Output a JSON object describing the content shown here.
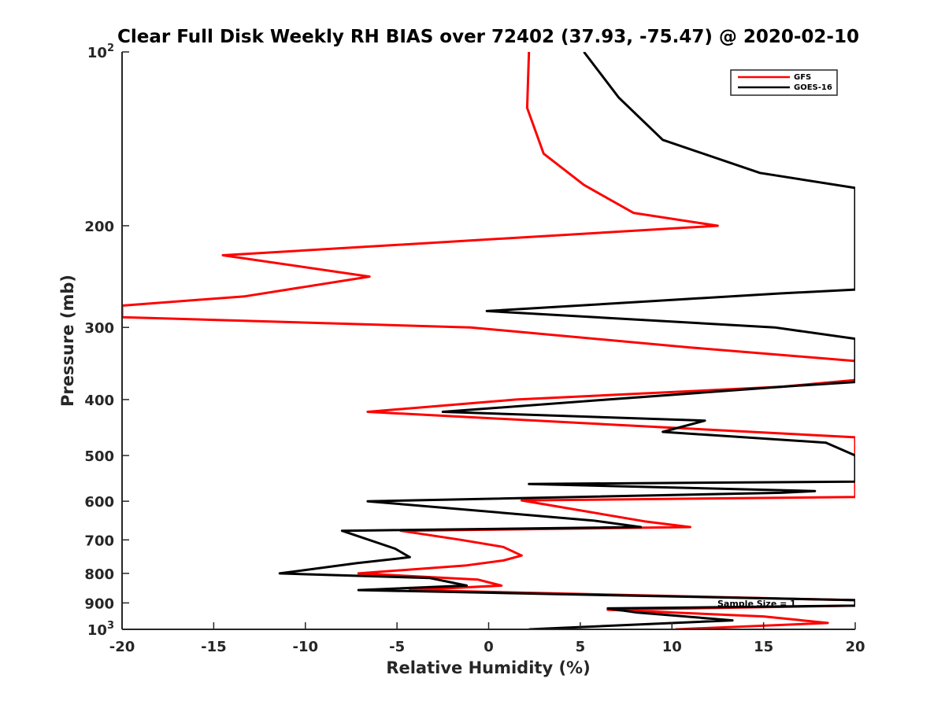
{
  "chart_data": {
    "type": "line",
    "title": "Clear Full Disk Weekly RH BIAS over 72402 (37.93, -75.47) @ 2020-02-10",
    "xlabel": "Relative Humidity (%)",
    "ylabel": "Pressure (mb)",
    "xlim": [
      -20,
      20
    ],
    "ylim": [
      100,
      1000
    ],
    "yscale": "log",
    "y_reversed": true,
    "grid": false,
    "legend_position": "top-right",
    "x_ticks": [
      -20,
      -15,
      -10,
      -5,
      0,
      5,
      10,
      15,
      20
    ],
    "x_tick_labels": [
      "-20",
      "-15",
      "-10",
      "-5",
      "0",
      "5",
      "10",
      "15",
      "20"
    ],
    "y_ticks": [
      100,
      200,
      300,
      400,
      500,
      600,
      700,
      800,
      900,
      1000
    ],
    "y_tick_labels": [
      {
        "base": "10",
        "exp": "2"
      },
      {
        "base": "200",
        "exp": ""
      },
      {
        "base": "300",
        "exp": ""
      },
      {
        "base": "400",
        "exp": ""
      },
      {
        "base": "500",
        "exp": ""
      },
      {
        "base": "600",
        "exp": ""
      },
      {
        "base": "700",
        "exp": ""
      },
      {
        "base": "800",
        "exp": ""
      },
      {
        "base": "900",
        "exp": ""
      },
      {
        "base": "10",
        "exp": "3"
      }
    ],
    "annotation": "Sample Size = 1",
    "series": [
      {
        "name": "GFS",
        "color": "#ff0000",
        "points": [
          [
            2.2,
            100
          ],
          [
            2.1,
            125
          ],
          [
            3.0,
            150
          ],
          [
            5.2,
            170
          ],
          [
            7.9,
            190
          ],
          [
            12.5,
            200
          ],
          [
            -14.5,
            225
          ],
          [
            -6.5,
            245
          ],
          [
            -13.3,
            265
          ],
          [
            -20,
            275
          ],
          [
            -20,
            288
          ],
          [
            -1.0,
            300
          ],
          [
            11.0,
            325
          ],
          [
            20,
            343
          ],
          [
            20,
            370
          ],
          [
            16.0,
            380
          ],
          [
            1.5,
            400
          ],
          [
            -6.6,
            420
          ],
          [
            20,
            465
          ],
          [
            20,
            590
          ],
          [
            1.8,
            598
          ],
          [
            8.5,
            650
          ],
          [
            11.0,
            665
          ],
          [
            -4.8,
            675
          ],
          [
            -1.5,
            700
          ],
          [
            0.8,
            720
          ],
          [
            1.8,
            745
          ],
          [
            0.8,
            760
          ],
          [
            -1.2,
            775
          ],
          [
            -7.1,
            800
          ],
          [
            -0.6,
            820
          ],
          [
            0.7,
            840
          ],
          [
            -4.3,
            855
          ],
          [
            20,
            890
          ],
          [
            20,
            910
          ],
          [
            6.5,
            925
          ],
          [
            15.0,
            950
          ],
          [
            18.5,
            975
          ],
          [
            10.2,
            1000
          ]
        ]
      },
      {
        "name": "GOES-16",
        "color": "#000000",
        "points": [
          [
            5.2,
            100
          ],
          [
            7.1,
            120
          ],
          [
            9.5,
            142
          ],
          [
            14.8,
            162
          ],
          [
            20,
            172
          ],
          [
            20,
            258
          ],
          [
            15.9,
            262
          ],
          [
            -0.1,
            281
          ],
          [
            15.6,
            300
          ],
          [
            20,
            314
          ],
          [
            20,
            373
          ],
          [
            16.0,
            380
          ],
          [
            6.5,
            400
          ],
          [
            -2.5,
            420
          ],
          [
            11.8,
            435
          ],
          [
            9.5,
            455
          ],
          [
            18.4,
            475
          ],
          [
            20,
            500
          ],
          [
            20,
            520
          ],
          [
            20,
            555
          ],
          [
            2.2,
            560
          ],
          [
            17.8,
            576
          ],
          [
            16.0,
            580
          ],
          [
            -6.6,
            600
          ],
          [
            5.7,
            648
          ],
          [
            8.3,
            665
          ],
          [
            -8.0,
            675
          ],
          [
            -5.1,
            725
          ],
          [
            -4.3,
            750
          ],
          [
            -7.2,
            768
          ],
          [
            -11.4,
            800
          ],
          [
            -3.2,
            815
          ],
          [
            -1.2,
            840
          ],
          [
            -7.1,
            855
          ],
          [
            20,
            890
          ],
          [
            20,
            910
          ],
          [
            6.5,
            920
          ],
          [
            8.1,
            935
          ],
          [
            13.3,
            965
          ],
          [
            2.2,
            1000
          ]
        ]
      }
    ]
  }
}
